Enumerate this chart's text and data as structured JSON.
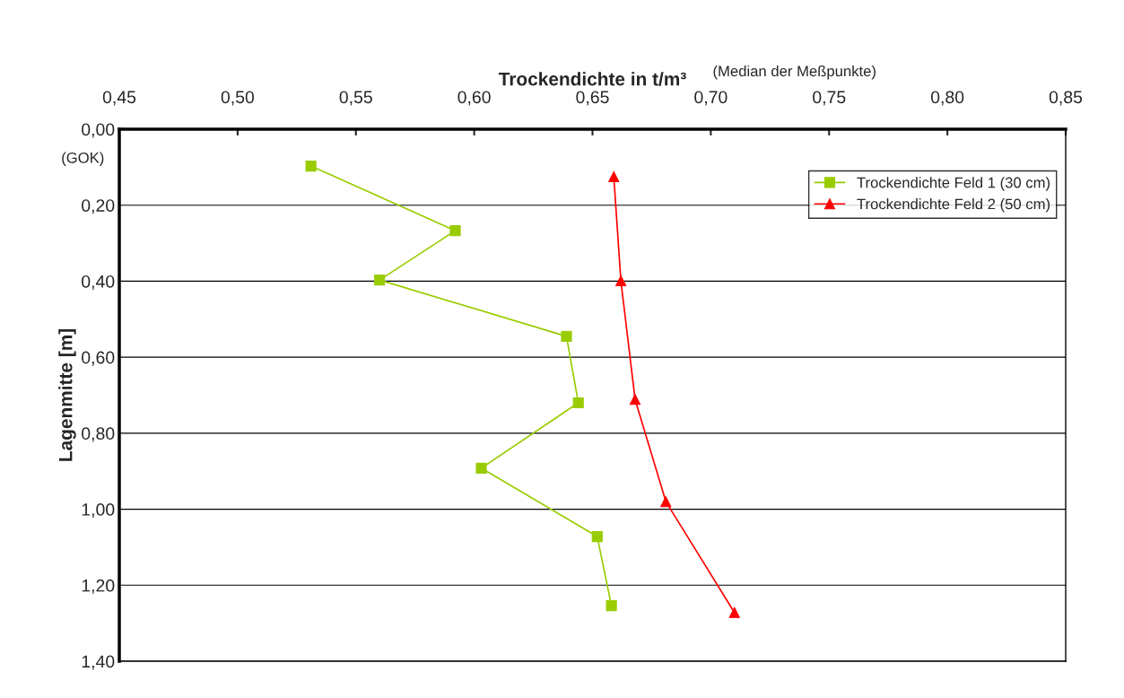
{
  "chart_data": {
    "type": "line",
    "xlabel": "Trockendichte in t/m³",
    "ylabel": "Lagenmitte [m]",
    "annotations": [
      "(Median der Meßpunkte)",
      "(GOK)"
    ],
    "series": [
      {
        "name": "Trockendichte Feld 1 (30 cm)",
        "color": "#99cc00",
        "marker": "square",
        "x": [
          0.531,
          0.592,
          0.56,
          0.639,
          0.644,
          0.603,
          0.652,
          0.658
        ],
        "values": [
          0.097,
          0.267,
          0.397,
          0.545,
          0.72,
          0.892,
          1.072,
          1.254
        ]
      },
      {
        "name": "Trockendichte Feld 2 (50 cm)",
        "color": "#ff0000",
        "marker": "triangle",
        "x": [
          0.659,
          0.662,
          0.668,
          0.681,
          0.71
        ],
        "values": [
          0.125,
          0.399,
          0.711,
          0.98,
          1.272
        ]
      }
    ],
    "xlim": [
      0.45,
      0.85
    ],
    "xticks": [
      {
        "value": 0.45,
        "label": "0,45"
      },
      {
        "value": 0.5,
        "label": "0,50"
      },
      {
        "value": 0.55,
        "label": "0,55"
      },
      {
        "value": 0.6,
        "label": "0,60"
      },
      {
        "value": 0.65,
        "label": "0,65"
      },
      {
        "value": 0.7,
        "label": "0,70"
      },
      {
        "value": 0.75,
        "label": "0,75"
      },
      {
        "value": 0.8,
        "label": "0,80"
      },
      {
        "value": 0.85,
        "label": "0,85"
      }
    ],
    "ylim": [
      1.4,
      0
    ],
    "yticks": [
      {
        "value": 0,
        "label": "0,00"
      },
      {
        "value": 0.2,
        "label": "0,20"
      },
      {
        "value": 0.4,
        "label": "0,40"
      },
      {
        "value": 0.6,
        "label": "0,60"
      },
      {
        "value": 0.8,
        "label": "0,80"
      },
      {
        "value": 1.0,
        "label": "1,00"
      },
      {
        "value": 1.2,
        "label": "1,20"
      },
      {
        "value": 1.4,
        "label": "1,40"
      }
    ],
    "grid": "y",
    "legend": "top right"
  }
}
